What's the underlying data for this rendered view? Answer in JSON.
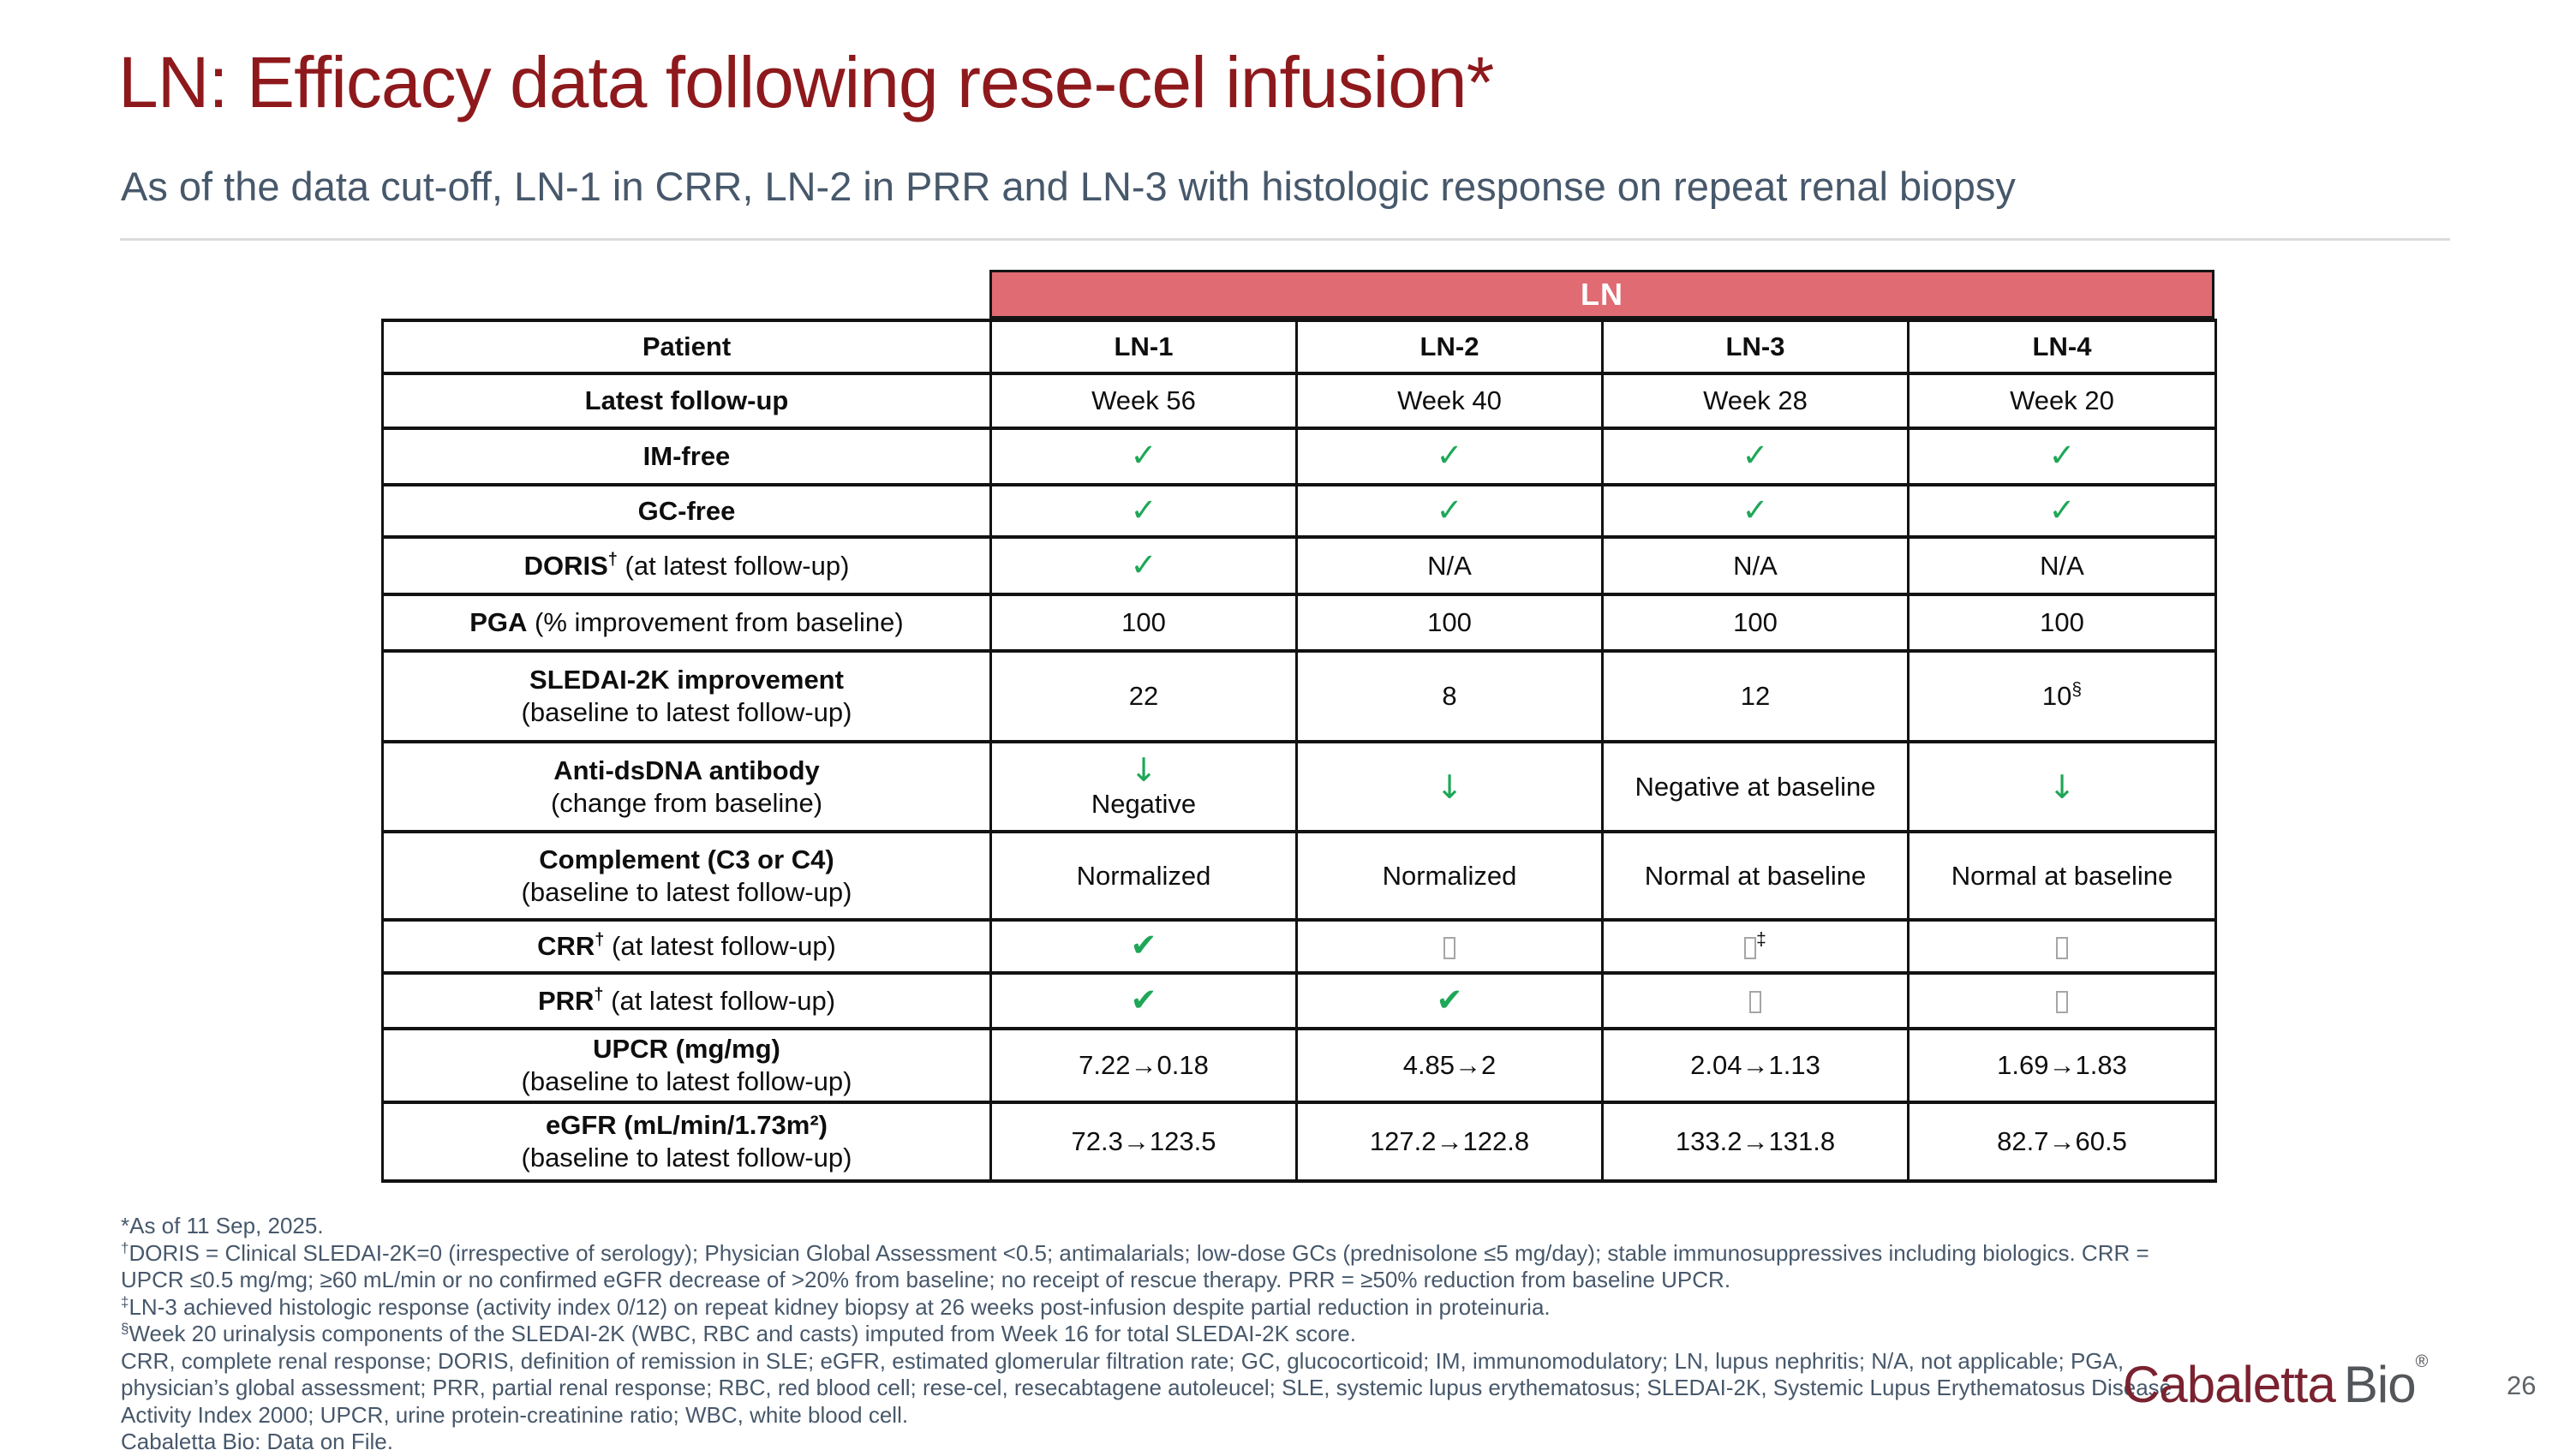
{
  "slide": {
    "title": "LN: Efficacy data following rese-cel infusion*",
    "subtitle": "As of the data cut-off, LN-1 in CRR, LN-2 in PRR and LN-3 with histologic response on repeat renal biopsy",
    "page_number": "26"
  },
  "logo": {
    "brand": "Cabaletta",
    "suffix": "Bio",
    "registered": "®"
  },
  "colors": {
    "title_red": "#8e191c",
    "header_bar_red": "#e06b72",
    "slate_text": "#47586b",
    "check_green": "#1fa758",
    "logo_maroon": "#7a2230",
    "logo_gray": "#53565a"
  },
  "table": {
    "group_header": "LN",
    "rows": [
      {
        "label": {
          "bold": "Patient"
        },
        "cells": [
          {
            "t": "htext",
            "v": "LN-1"
          },
          {
            "t": "htext",
            "v": "LN-2"
          },
          {
            "t": "htext",
            "v": "LN-3"
          },
          {
            "t": "htext",
            "v": "LN-4"
          }
        ]
      },
      {
        "label": {
          "bold": "Latest follow-up"
        },
        "cells": [
          {
            "t": "text",
            "v": "Week 56"
          },
          {
            "t": "text",
            "v": "Week 40"
          },
          {
            "t": "text",
            "v": "Week 28"
          },
          {
            "t": "text",
            "v": "Week 20"
          }
        ]
      },
      {
        "label": {
          "bold": "IM-free"
        },
        "cells": [
          {
            "t": "check"
          },
          {
            "t": "check"
          },
          {
            "t": "check"
          },
          {
            "t": "check"
          }
        ]
      },
      {
        "label": {
          "bold": "GC-free"
        },
        "cells": [
          {
            "t": "check"
          },
          {
            "t": "check"
          },
          {
            "t": "check"
          },
          {
            "t": "check"
          }
        ]
      },
      {
        "label": {
          "bold": "DORIS",
          "sup": "†",
          "rest": " (at latest follow-up)"
        },
        "cells": [
          {
            "t": "check"
          },
          {
            "t": "text",
            "v": "N/A"
          },
          {
            "t": "text",
            "v": "N/A"
          },
          {
            "t": "text",
            "v": "N/A"
          }
        ]
      },
      {
        "label": {
          "bold": "PGA",
          "rest": " (% improvement from baseline)"
        },
        "cells": [
          {
            "t": "text",
            "v": "100"
          },
          {
            "t": "text",
            "v": "100"
          },
          {
            "t": "text",
            "v": "100"
          },
          {
            "t": "text",
            "v": "100"
          }
        ]
      },
      {
        "label": {
          "bold": "SLEDAI-2K improvement",
          "line2": "(baseline to latest follow-up)"
        },
        "cells": [
          {
            "t": "text",
            "v": "22"
          },
          {
            "t": "text",
            "v": "8"
          },
          {
            "t": "text",
            "v": "12"
          },
          {
            "t": "text",
            "v": "10",
            "sup": "§"
          }
        ]
      },
      {
        "label": {
          "bold": "Anti-dsDNA antibody",
          "line2": "(change from baseline)"
        },
        "cells": [
          {
            "t": "arrow",
            "v2": "Negative"
          },
          {
            "t": "arrow"
          },
          {
            "t": "text",
            "v": "Negative at baseline"
          },
          {
            "t": "arrow"
          }
        ]
      },
      {
        "label": {
          "bold": "Complement (C3 or C4)",
          "line2": "(baseline to latest follow-up)"
        },
        "cells": [
          {
            "t": "text",
            "v": "Normalized"
          },
          {
            "t": "text",
            "v": "Normalized"
          },
          {
            "t": "text",
            "v": "Normal at baseline"
          },
          {
            "t": "text",
            "v": "Normal at baseline"
          }
        ]
      },
      {
        "label": {
          "bold": "CRR",
          "sup": "†",
          "rest": " (at latest follow-up)"
        },
        "cells": [
          {
            "t": "boldcheck"
          },
          {
            "t": "box"
          },
          {
            "t": "box",
            "sup": "‡"
          },
          {
            "t": "box"
          }
        ]
      },
      {
        "label": {
          "bold": "PRR",
          "sup": "†",
          "rest": " (at latest follow-up)"
        },
        "cells": [
          {
            "t": "boldcheck"
          },
          {
            "t": "boldcheck"
          },
          {
            "t": "box"
          },
          {
            "t": "box"
          }
        ]
      },
      {
        "label": {
          "bold": "UPCR (mg/mg)",
          "line2": "(baseline to latest follow-up)"
        },
        "cells": [
          {
            "t": "text",
            "v": "7.22→0.18"
          },
          {
            "t": "text",
            "v": "4.85→2"
          },
          {
            "t": "text",
            "v": "2.04→1.13"
          },
          {
            "t": "text",
            "v": "1.69→1.83"
          }
        ]
      },
      {
        "label": {
          "bold": "eGFR (mL/min/1.73m²)",
          "line2": "(baseline to latest follow-up)"
        },
        "cells": [
          {
            "t": "text",
            "v": "72.3→123.5"
          },
          {
            "t": "text",
            "v": "127.2→122.8"
          },
          {
            "t": "text",
            "v": "133.2→131.8"
          },
          {
            "t": "text",
            "v": "82.7→60.5"
          }
        ]
      }
    ]
  },
  "footnotes": {
    "lines": [
      "*As of 11 Sep, 2025.",
      "†DORIS = Clinical SLEDAI-2K=0 (irrespective of serology); Physician Global Assessment <0.5; antimalarials; low-dose GCs (prednisolone ≤5 mg/day); stable immunosuppressives including biologics. CRR =",
      "UPCR ≤0.5 mg/mg; ≥60 mL/min or no confirmed eGFR decrease of >20% from baseline; no receipt of rescue therapy. PRR = ≥50% reduction from baseline UPCR.",
      "‡LN-3 achieved histologic response (activity index 0/12) on repeat kidney biopsy at 26 weeks post-infusion despite partial reduction in proteinuria.",
      "§Week 20 urinalysis components of the SLEDAI-2K (WBC, RBC and casts) imputed from Week 16 for total SLEDAI-2K score.",
      "CRR, complete renal response; DORIS, definition of remission in SLE; eGFR, estimated glomerular filtration rate; GC, glucocorticoid; IM, immunomodulatory; LN, lupus nephritis; N/A, not applicable; PGA,",
      "physician’s global assessment; PRR, partial renal response; RBC, red blood cell; rese-cel, resecabtagene autoleucel; SLE, systemic lupus erythematosus; SLEDAI-2K, Systemic Lupus Erythematosus Disease",
      "Activity Index 2000; UPCR, urine protein-creatinine ratio; WBC, white blood cell.",
      "Cabaletta Bio: Data on File."
    ]
  }
}
